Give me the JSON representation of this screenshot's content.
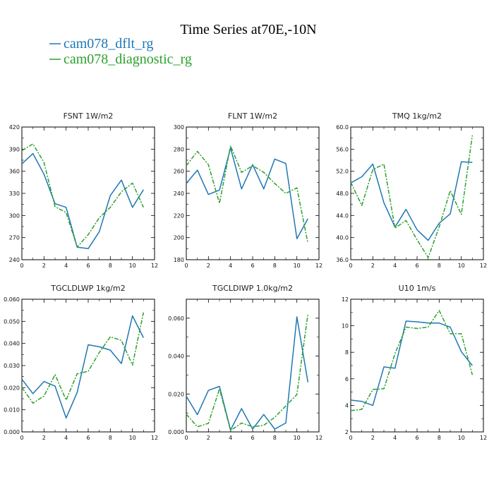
{
  "title": "Time Series at70E,-10N",
  "legend": [
    {
      "label": "cam078_dflt_rg",
      "color": "#1f77b4",
      "dash": "none"
    },
    {
      "label": "cam078_diagnostic_rg",
      "color": "#2ca02c",
      "dash": "6,2,2,2"
    }
  ],
  "chart_data": [
    {
      "type": "line",
      "title": "FSNT  1W/m2",
      "x": [
        0,
        1,
        2,
        3,
        4,
        5,
        6,
        7,
        8,
        9,
        10,
        11
      ],
      "xlim": [
        0,
        12
      ],
      "xticks": [
        "0",
        "2",
        "4",
        "6",
        "8",
        "10",
        "12"
      ],
      "ylim": [
        240,
        420
      ],
      "yticks": [
        "240",
        "270",
        "300",
        "330",
        "360",
        "390",
        "420"
      ],
      "series": [
        {
          "name": "cam078_dflt_rg",
          "values": [
            370,
            384,
            356,
            316,
            311,
            257,
            255,
            278,
            327,
            348,
            311,
            335
          ]
        },
        {
          "name": "cam078_diagnostic_rg",
          "values": [
            388,
            397,
            372,
            312,
            304,
            257,
            274,
            297,
            311,
            332,
            344,
            311
          ]
        }
      ]
    },
    {
      "type": "line",
      "title": "FLNT  1W/m2",
      "x": [
        0,
        1,
        2,
        3,
        4,
        5,
        6,
        7,
        8,
        9,
        10,
        11
      ],
      "xlim": [
        0,
        12
      ],
      "xticks": [
        "0",
        "2",
        "4",
        "6",
        "8",
        "10",
        "12"
      ],
      "ylim": [
        180,
        300
      ],
      "yticks": [
        "180",
        "200",
        "220",
        "240",
        "260",
        "280",
        "300"
      ],
      "series": [
        {
          "name": "cam078_dflt_rg",
          "values": [
            249,
            261,
            239,
            243,
            281,
            244,
            266,
            244,
            271,
            267,
            199,
            217
          ]
        },
        {
          "name": "cam078_diagnostic_rg",
          "values": [
            265,
            278,
            266,
            231,
            283,
            259,
            265,
            259,
            249,
            240,
            245,
            195
          ]
        }
      ]
    },
    {
      "type": "line",
      "title": "TMQ  1kg/m2",
      "x": [
        0,
        1,
        2,
        3,
        4,
        5,
        6,
        7,
        8,
        9,
        10,
        11
      ],
      "xlim": [
        0,
        12
      ],
      "xticks": [
        "0",
        "2",
        "4",
        "6",
        "8",
        "10",
        "12"
      ],
      "ylim": [
        36,
        60
      ],
      "yticks": [
        "36.0",
        "40.0",
        "44.0",
        "48.0",
        "52.0",
        "56.0",
        "60.0"
      ],
      "series": [
        {
          "name": "cam078_dflt_rg",
          "values": [
            49.9,
            51.0,
            53.3,
            46.3,
            41.9,
            45.1,
            41.4,
            39.5,
            42.6,
            44.3,
            53.7,
            53.6
          ]
        },
        {
          "name": "cam078_diagnostic_rg",
          "values": [
            50.0,
            45.8,
            52.3,
            53.3,
            41.7,
            43.1,
            39.6,
            36.4,
            41.9,
            48.5,
            44.2,
            58.5
          ]
        }
      ]
    },
    {
      "type": "line",
      "title": "TGCLDLWP  1kg/m2",
      "x": [
        0,
        1,
        2,
        3,
        4,
        5,
        6,
        7,
        8,
        9,
        10,
        11
      ],
      "xlim": [
        0,
        12
      ],
      "xticks": [
        "0",
        "2",
        "4",
        "6",
        "8",
        "10",
        "12"
      ],
      "ylim": [
        0,
        0.06
      ],
      "yticks": [
        "0.000",
        "0.010",
        "0.020",
        "0.030",
        "0.040",
        "0.050",
        "0.060"
      ],
      "series": [
        {
          "name": "cam078_dflt_rg",
          "values": [
            0.0238,
            0.0173,
            0.0228,
            0.0207,
            0.0063,
            0.0178,
            0.0394,
            0.0385,
            0.037,
            0.0309,
            0.0525,
            0.0426
          ]
        },
        {
          "name": "cam078_diagnostic_rg",
          "values": [
            0.0201,
            0.013,
            0.0162,
            0.0259,
            0.0144,
            0.0263,
            0.0274,
            0.0359,
            0.043,
            0.0414,
            0.0302,
            0.054
          ]
        }
      ]
    },
    {
      "type": "line",
      "title": "TGCLDIWP  1.0kg/m2",
      "x": [
        0,
        1,
        2,
        3,
        4,
        5,
        6,
        7,
        8,
        9,
        10,
        11
      ],
      "xlim": [
        0,
        12
      ],
      "xticks": [
        "0",
        "2",
        "4",
        "6",
        "8",
        "10",
        "12"
      ],
      "ylim": [
        0,
        0.07
      ],
      "yticks": [
        "0.000",
        "0.020",
        "0.040",
        "0.060"
      ],
      "series": [
        {
          "name": "cam078_dflt_rg",
          "values": [
            0.0188,
            0.0091,
            0.0219,
            0.024,
            0.001,
            0.0123,
            0.0015,
            0.0092,
            0.0015,
            0.0047,
            0.0607,
            0.0262
          ]
        },
        {
          "name": "cam078_diagnostic_rg",
          "values": [
            0.0093,
            0.0027,
            0.0045,
            0.0227,
            0.0007,
            0.0047,
            0.0027,
            0.0035,
            0.0077,
            0.0137,
            0.0197,
            0.0622
          ]
        }
      ]
    },
    {
      "type": "line",
      "title": "U10  1m/s",
      "x": [
        0,
        1,
        2,
        3,
        4,
        5,
        6,
        7,
        8,
        9,
        10,
        11
      ],
      "xlim": [
        0,
        12
      ],
      "xticks": [
        "0",
        "2",
        "4",
        "6",
        "8",
        "10",
        "12"
      ],
      "ylim": [
        2,
        12
      ],
      "yticks": [
        "2",
        "4",
        "6",
        "8",
        "10",
        "12"
      ],
      "series": [
        {
          "name": "cam078_dflt_rg",
          "values": [
            4.4,
            4.3,
            4.0,
            6.9,
            6.8,
            10.35,
            10.3,
            10.2,
            10.2,
            9.9,
            8.05,
            7.0
          ]
        },
        {
          "name": "cam078_diagnostic_rg",
          "values": [
            3.6,
            3.7,
            5.2,
            5.25,
            7.9,
            9.9,
            9.8,
            9.9,
            11.15,
            9.4,
            9.4,
            6.3
          ]
        }
      ]
    }
  ]
}
